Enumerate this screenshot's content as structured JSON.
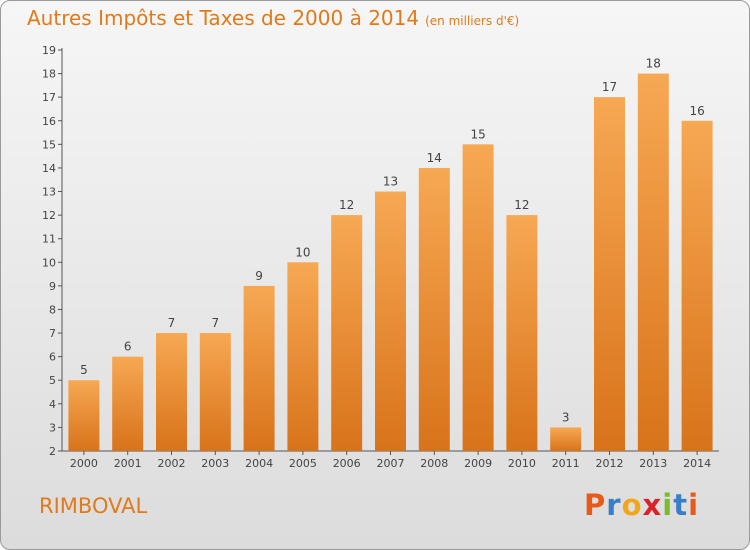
{
  "header": {
    "title": "Autres Impôts et Taxes de 2000 à 2014",
    "unit": "(en milliers d'€)"
  },
  "footer": {
    "commune": "RIMBOVAL",
    "logo_letters": [
      "P",
      "r",
      "o",
      "x",
      "i",
      "t",
      "i"
    ],
    "logo_colors": [
      "#e8591a",
      "#3a7ec8",
      "#f2a71b",
      "#d8232a",
      "#7dbb2a",
      "#3a7ec8",
      "#e8591a"
    ]
  },
  "colors": {
    "bar_light": "#f7a853",
    "bar_dark": "#d8731a",
    "accent": "#e07a1a"
  },
  "chart_data": {
    "type": "bar",
    "title": "Autres Impôts et Taxes de 2000 à 2014",
    "subtitle": "(en milliers d'€)",
    "xlabel": "",
    "ylabel": "",
    "categories": [
      "2000",
      "2001",
      "2002",
      "2003",
      "2004",
      "2005",
      "2006",
      "2007",
      "2008",
      "2009",
      "2010",
      "2011",
      "2012",
      "2013",
      "2014"
    ],
    "values": [
      5,
      6,
      7,
      7,
      9,
      10,
      12,
      13,
      14,
      15,
      12,
      3,
      17,
      18,
      16
    ],
    "ylim": [
      2,
      19
    ],
    "yticks": [
      2,
      3,
      4,
      5,
      6,
      7,
      8,
      9,
      10,
      11,
      12,
      13,
      14,
      15,
      16,
      17,
      18,
      19
    ],
    "grid": false,
    "legend": "none"
  }
}
